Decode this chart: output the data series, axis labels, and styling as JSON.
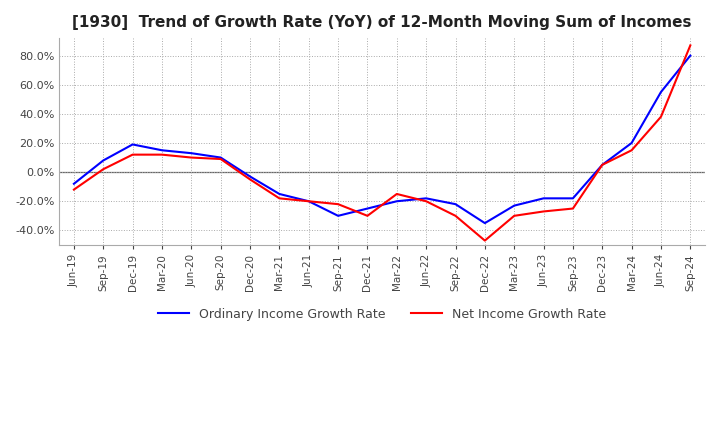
{
  "title": "[1930]  Trend of Growth Rate (YoY) of 12-Month Moving Sum of Incomes",
  "title_fontsize": 11,
  "background_color": "#ffffff",
  "grid_color": "#aaaaaa",
  "ylim": [
    -50,
    92
  ],
  "yticks": [
    -40.0,
    -20.0,
    0.0,
    20.0,
    40.0,
    60.0,
    80.0
  ],
  "x_labels": [
    "Jun-19",
    "Sep-19",
    "Dec-19",
    "Mar-20",
    "Jun-20",
    "Sep-20",
    "Dec-20",
    "Mar-21",
    "Jun-21",
    "Sep-21",
    "Dec-21",
    "Mar-22",
    "Jun-22",
    "Sep-22",
    "Dec-22",
    "Mar-23",
    "Jun-23",
    "Sep-23",
    "Dec-23",
    "Mar-24",
    "Jun-24",
    "Sep-24"
  ],
  "ordinary_income": [
    -8,
    8,
    19,
    15,
    13,
    10,
    -3,
    -15,
    -20,
    -30,
    -25,
    -20,
    -18,
    -22,
    -35,
    -23,
    -18,
    -18,
    5,
    20,
    55,
    80
  ],
  "net_income": [
    -12,
    2,
    12,
    12,
    10,
    9,
    -5,
    -18,
    -20,
    -22,
    -30,
    -15,
    -20,
    -30,
    -47,
    -30,
    -27,
    -25,
    5,
    15,
    38,
    87
  ],
  "ordinary_color": "#0000ff",
  "net_color": "#ff0000",
  "line_width": 1.5,
  "legend_labels": [
    "Ordinary Income Growth Rate",
    "Net Income Growth Rate"
  ]
}
